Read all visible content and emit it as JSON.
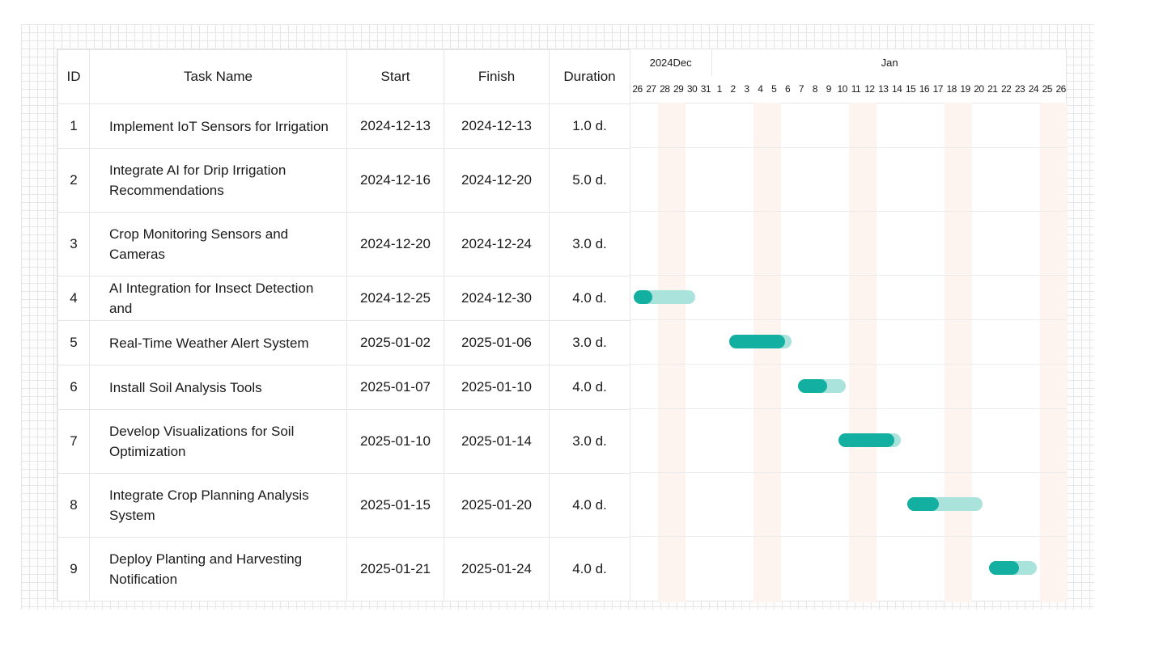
{
  "columns": {
    "id": "ID",
    "name": "Task Name",
    "start": "Start",
    "finish": "Finish",
    "duration": "Duration"
  },
  "months": [
    {
      "label": "2024Dec"
    },
    {
      "label": "Jan"
    }
  ],
  "days": [
    "26",
    "27",
    "28",
    "29",
    "30",
    "31",
    "1",
    "2",
    "3",
    "4",
    "5",
    "6",
    "7",
    "8",
    "9",
    "10",
    "11",
    "12",
    "13",
    "14",
    "15",
    "16",
    "17",
    "18",
    "19",
    "20",
    "21",
    "22",
    "23",
    "24",
    "25",
    "26"
  ],
  "colors": {
    "bar_fill": "#13b0a2",
    "bar_track": "#a9e3dc",
    "weekend": "#fdf3ef"
  },
  "chart_data": {
    "type": "table",
    "timeline_start": "2024-12-26",
    "timeline_end": "2025-01-26",
    "weekend_dates": [
      "2024-12-28",
      "2024-12-29",
      "2025-01-04",
      "2025-01-05",
      "2025-01-11",
      "2025-01-12",
      "2025-01-18",
      "2025-01-19",
      "2025-01-25",
      "2025-01-26"
    ],
    "tasks": [
      {
        "id": "1",
        "name": "Implement IoT Sensors for Irrigation",
        "start": "2024-12-13",
        "finish": "2024-12-13",
        "duration": "1.0 d.",
        "bar": null
      },
      {
        "id": "2",
        "name": "Integrate AI for Drip Irrigation Recommendations",
        "start": "2024-12-16",
        "finish": "2024-12-20",
        "duration": "5.0 d.",
        "bar": null
      },
      {
        "id": "3",
        "name": " Crop Monitoring Sensors and Cameras",
        "start": "2024-12-20",
        "finish": "2024-12-24",
        "duration": "3.0 d.",
        "bar": null
      },
      {
        "id": "4",
        "name": "AI Integration for Insect Detection and",
        "start": "2024-12-25",
        "finish": "2024-12-30",
        "duration": "4.0 d.",
        "bar": {
          "from": "2024-12-26",
          "to": "2024-12-30",
          "progress": 0.3
        }
      },
      {
        "id": "5",
        "name": "Real-Time Weather Alert System",
        "start": "2025-01-02",
        "finish": "2025-01-06",
        "duration": "3.0 d.",
        "bar": {
          "from": "2025-01-02",
          "to": "2025-01-06",
          "progress": 0.9
        }
      },
      {
        "id": "6",
        "name": "Install Soil Analysis Tools",
        "start": "2025-01-07",
        "finish": "2025-01-10",
        "duration": "4.0 d.",
        "bar": {
          "from": "2025-01-07",
          "to": "2025-01-10",
          "progress": 0.62
        }
      },
      {
        "id": "7",
        "name": "Develop Visualizations for Soil Optimization",
        "start": "2025-01-10",
        "finish": "2025-01-14",
        "duration": "3.0 d.",
        "bar": {
          "from": "2025-01-10",
          "to": "2025-01-14",
          "progress": 0.9
        }
      },
      {
        "id": "8",
        "name": "Integrate Crop Planning Analysis System",
        "start": "2025-01-15",
        "finish": "2025-01-20",
        "duration": "4.0 d.",
        "bar": {
          "from": "2025-01-15",
          "to": "2025-01-20",
          "progress": 0.42
        }
      },
      {
        "id": "9",
        "name": " Deploy Planting and Harvesting Notification",
        "start": "2025-01-21",
        "finish": "2025-01-24",
        "duration": "4.0 d.",
        "bar": {
          "from": "2025-01-21",
          "to": "2025-01-24",
          "progress": 0.63
        }
      }
    ]
  }
}
